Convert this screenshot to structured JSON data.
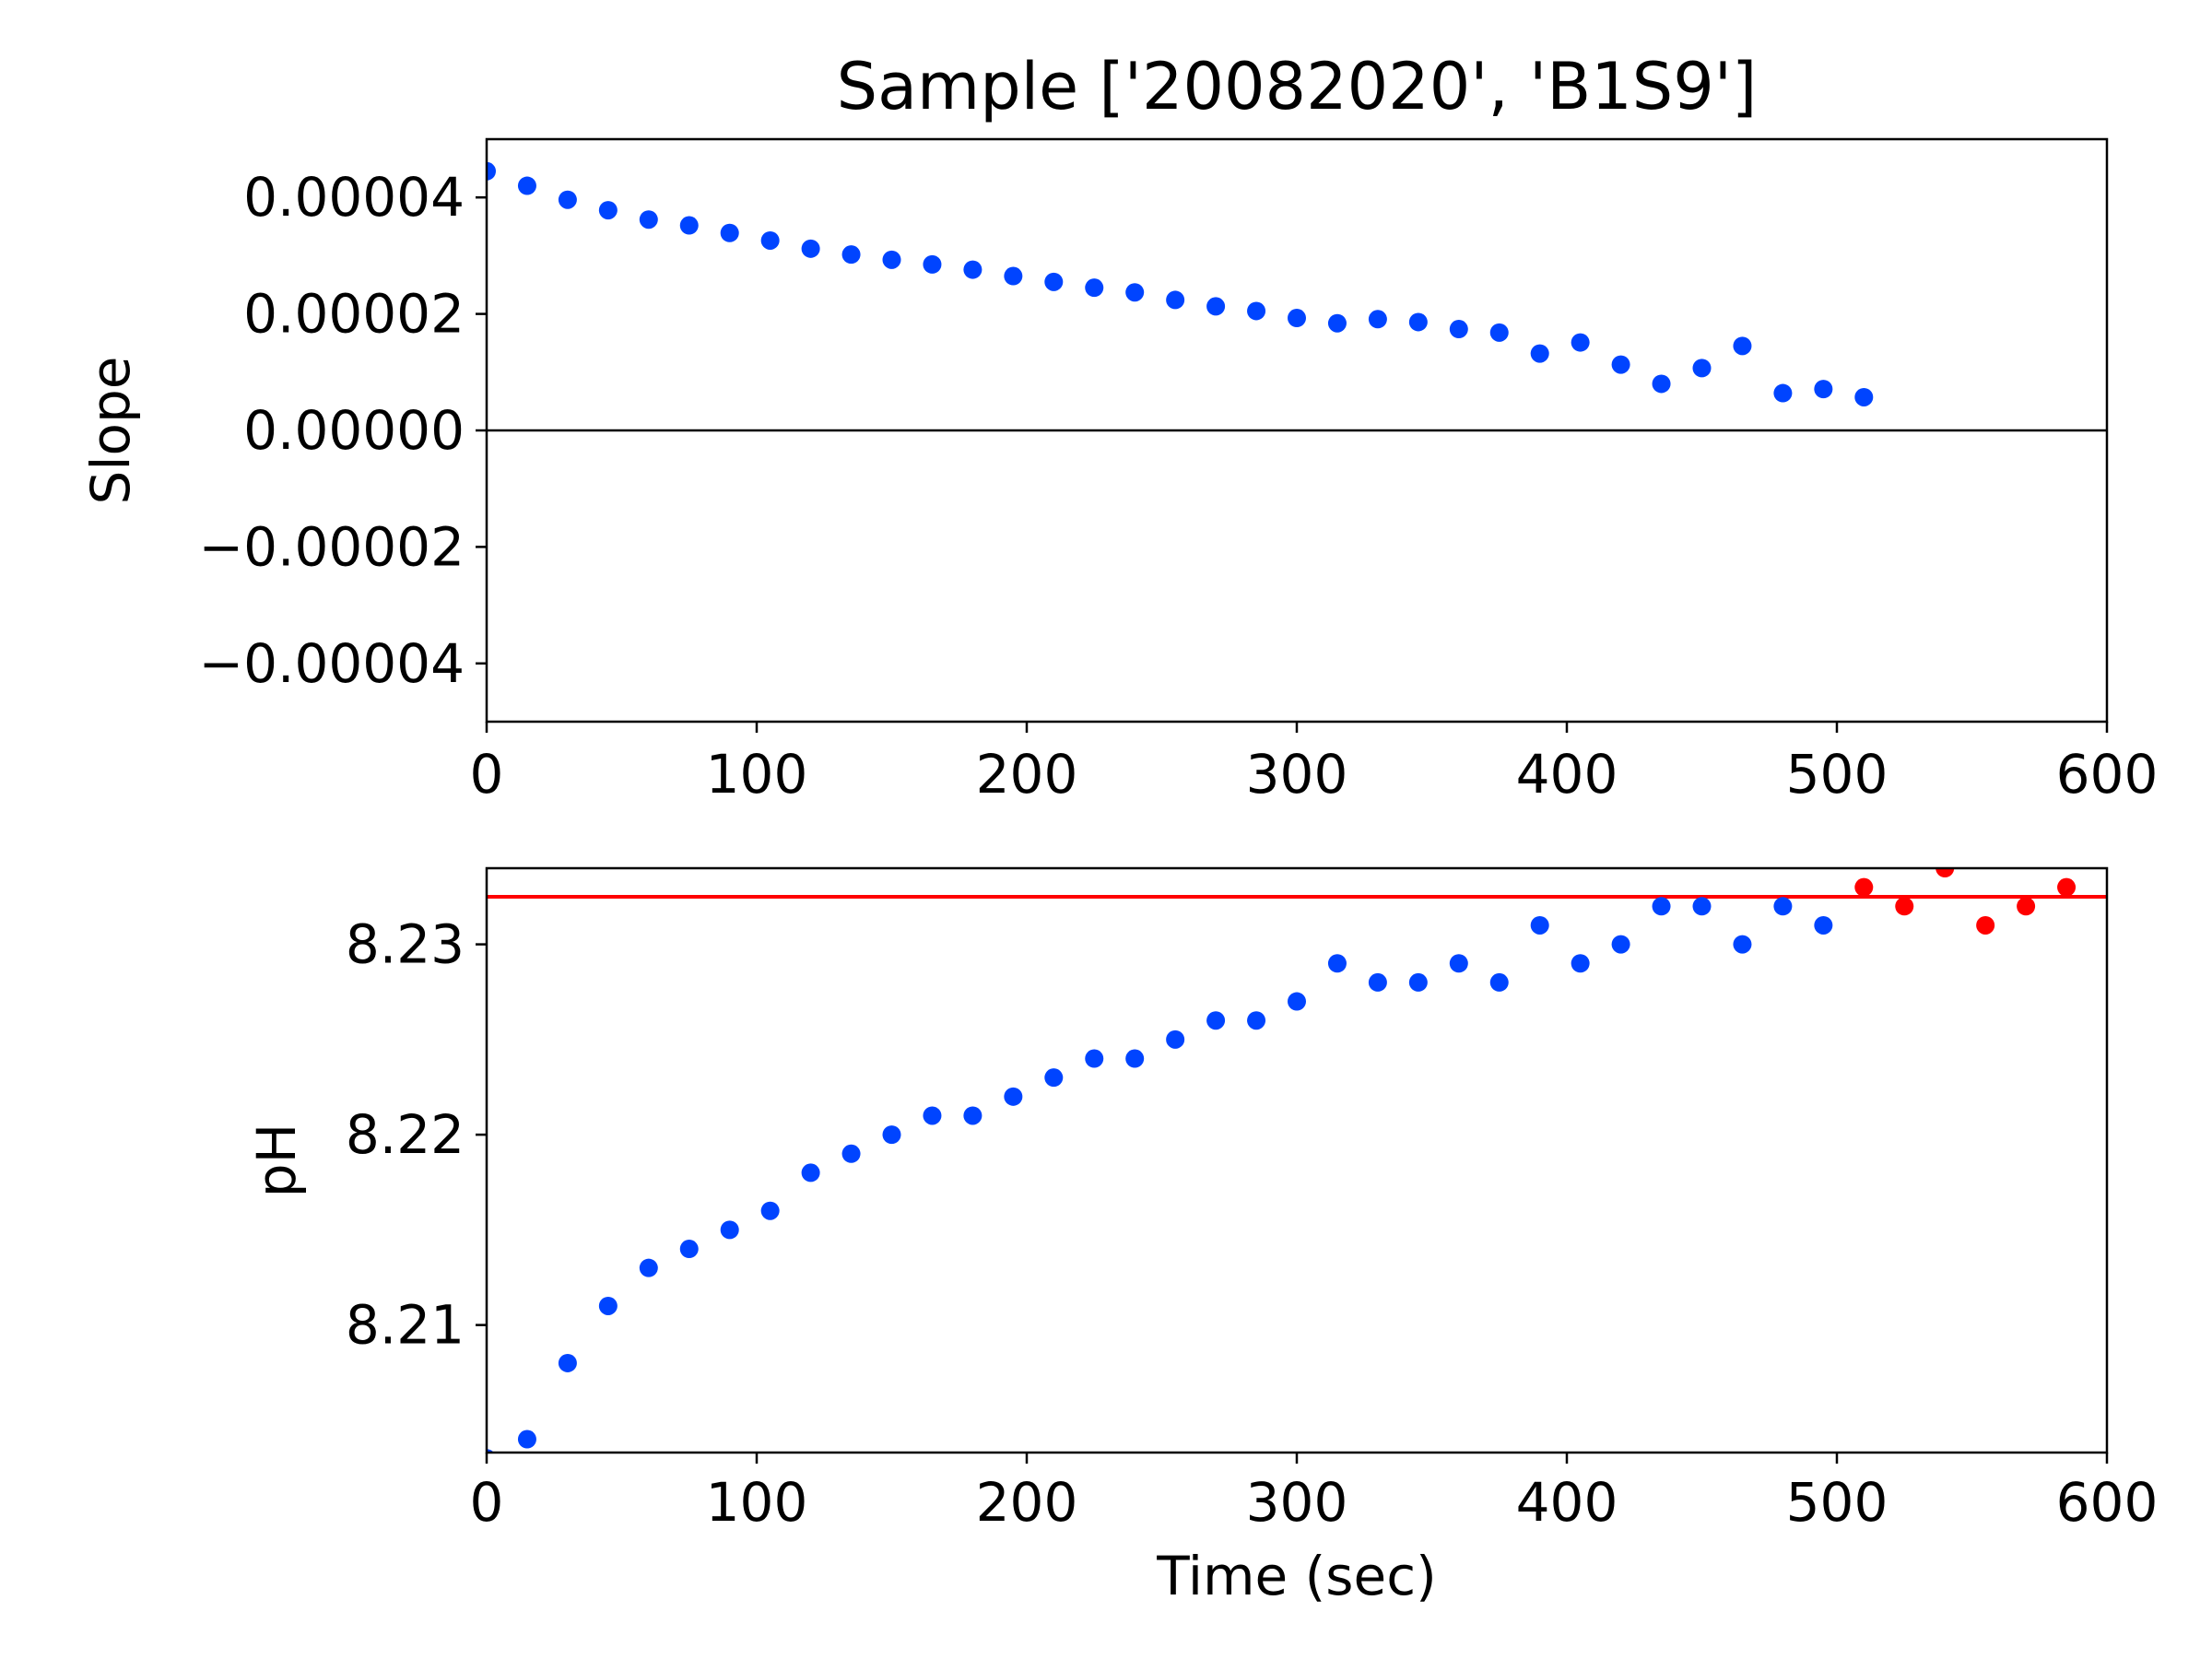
{
  "chart_data": [
    {
      "type": "scatter",
      "title": "Sample ['20082020', 'B1S9']",
      "xlabel": "",
      "ylabel": "Slope",
      "xlim": [
        0,
        600
      ],
      "ylim": [
        -5e-05,
        5e-05
      ],
      "xticks": [
        0,
        100,
        200,
        300,
        400,
        500,
        600
      ],
      "xtick_labels": [
        "0",
        "100",
        "200",
        "300",
        "400",
        "500",
        "600"
      ],
      "yticks": [
        -4e-05,
        -2e-05,
        0,
        2e-05,
        4e-05
      ],
      "ytick_labels": [
        "−0.00004",
        "−0.00002",
        "0.00000",
        "0.00002",
        "0.00004"
      ],
      "grid": false,
      "reference_line": {
        "orientation": "horizontal",
        "y": 0,
        "color": "#000000"
      },
      "series": [
        {
          "color": "#0044ff",
          "x": [
            0,
            15,
            30,
            45,
            60,
            75,
            90,
            105,
            120,
            135,
            150,
            165,
            180,
            195,
            210,
            225,
            240,
            255,
            270,
            285,
            300,
            315,
            330,
            345,
            360,
            375,
            390,
            405,
            420,
            435,
            450,
            465,
            480,
            495,
            510
          ],
          "y": [
            4.45e-05,
            4.2e-05,
            3.96e-05,
            3.78e-05,
            3.62e-05,
            3.52e-05,
            3.39e-05,
            3.26e-05,
            3.12e-05,
            3.02e-05,
            2.93e-05,
            2.85e-05,
            2.76e-05,
            2.65e-05,
            2.55e-05,
            2.45e-05,
            2.37e-05,
            2.24e-05,
            2.13e-05,
            2.05e-05,
            1.93e-05,
            1.84e-05,
            1.91e-05,
            1.86e-05,
            1.74e-05,
            1.68e-05,
            1.32e-05,
            1.51e-05,
            1.13e-05,
            8e-06,
            1.07e-05,
            1.45e-05,
            6.4e-06,
            7.1e-06,
            5.7e-06
          ]
        }
      ]
    },
    {
      "type": "scatter",
      "title": "",
      "xlabel": "Time (sec)",
      "ylabel": "pH",
      "xlim": [
        0,
        600
      ],
      "ylim": [
        8.2033,
        8.234
      ],
      "xticks": [
        0,
        100,
        200,
        300,
        400,
        500,
        600
      ],
      "xtick_labels": [
        "0",
        "100",
        "200",
        "300",
        "400",
        "500",
        "600"
      ],
      "yticks": [
        8.21,
        8.22,
        8.23
      ],
      "ytick_labels": [
        "8.21",
        "8.22",
        "8.23"
      ],
      "grid": false,
      "reference_line": {
        "orientation": "horizontal",
        "y": 8.2325,
        "color": "#ff0000"
      },
      "series": [
        {
          "color": "#0044ff",
          "x": [
            0,
            15,
            30,
            45,
            60,
            75,
            90,
            105,
            120,
            135,
            150,
            165,
            180,
            195,
            210,
            225,
            240,
            255,
            270,
            285,
            300,
            315,
            330,
            345,
            360,
            375,
            390,
            405,
            420,
            435,
            450,
            465,
            480,
            495
          ],
          "y": [
            8.203,
            8.204,
            8.208,
            8.211,
            8.213,
            8.214,
            8.215,
            8.216,
            8.218,
            8.219,
            8.22,
            8.221,
            8.221,
            8.222,
            8.223,
            8.224,
            8.224,
            8.225,
            8.226,
            8.226,
            8.227,
            8.229,
            8.228,
            8.228,
            8.229,
            8.228,
            8.231,
            8.229,
            8.23,
            8.232,
            8.232,
            8.23,
            8.232,
            8.231
          ]
        },
        {
          "color": "#ff0000",
          "x": [
            510,
            525,
            540,
            555,
            570,
            585
          ],
          "y": [
            8.233,
            8.232,
            8.234,
            8.231,
            8.232,
            8.233
          ]
        }
      ]
    }
  ]
}
